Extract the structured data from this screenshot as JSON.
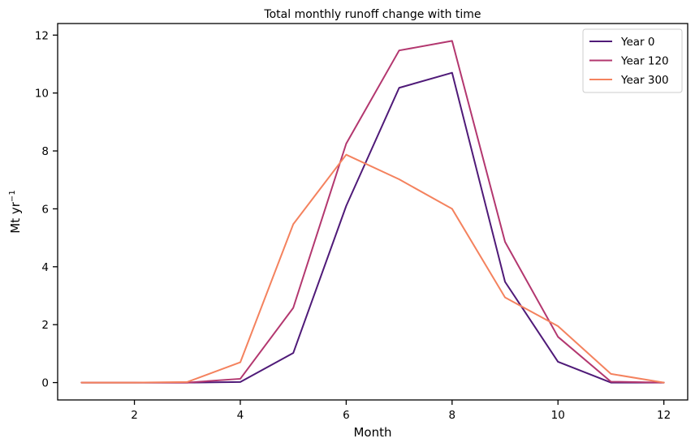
{
  "chart_data": {
    "type": "line",
    "title": "Total monthly runoff change with time",
    "xlabel": "Month",
    "ylabel": "Mt yr",
    "ylabel_superscript": "−1",
    "x": [
      1,
      2,
      3,
      4,
      5,
      6,
      7,
      8,
      9,
      10,
      11,
      12
    ],
    "xlim": [
      0.55,
      12.45
    ],
    "ylim": [
      -0.6,
      12.4
    ],
    "xticks": [
      2,
      4,
      6,
      8,
      10,
      12
    ],
    "yticks": [
      0,
      2,
      4,
      6,
      8,
      10,
      12
    ],
    "grid": false,
    "legend_position": "top-right",
    "series": [
      {
        "name": "Year 0",
        "color": "#4f1a78",
        "values": [
          0,
          0,
          0,
          0.02,
          1.02,
          6.1,
          10.18,
          10.7,
          3.48,
          0.72,
          0.0,
          0.0
        ]
      },
      {
        "name": "Year 120",
        "color": "#b3376f",
        "values": [
          0,
          0,
          0,
          0.13,
          2.58,
          8.25,
          11.47,
          11.8,
          4.86,
          1.58,
          0.03,
          0.0
        ]
      },
      {
        "name": "Year 300",
        "color": "#f4825e",
        "values": [
          0,
          0,
          0.02,
          0.7,
          5.47,
          7.87,
          7.02,
          6.0,
          2.94,
          1.95,
          0.3,
          0.0
        ]
      }
    ]
  }
}
